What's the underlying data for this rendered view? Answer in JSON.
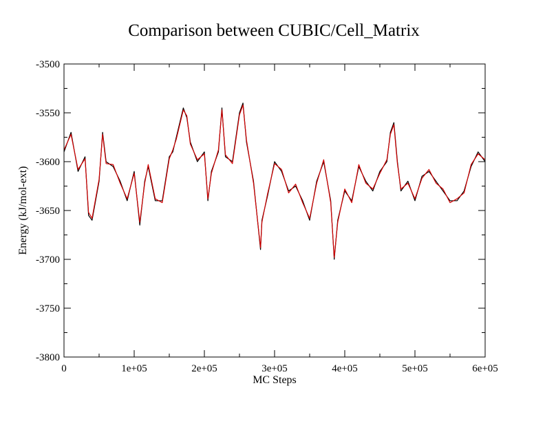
{
  "chart_data": {
    "type": "line",
    "title": "Comparison between CUBIC/Cell_Matrix",
    "xlabel": "MC Steps",
    "ylabel": "Energy (kJ/mol-ext)",
    "xlim": [
      0,
      600000
    ],
    "ylim": [
      -3800,
      -3500
    ],
    "x_ticks": [
      {
        "value": 0,
        "label": "0"
      },
      {
        "value": 100000,
        "label": "1e+05"
      },
      {
        "value": 200000,
        "label": "2e+05"
      },
      {
        "value": 300000,
        "label": "3e+05"
      },
      {
        "value": 400000,
        "label": "4e+05"
      },
      {
        "value": 500000,
        "label": "5e+05"
      },
      {
        "value": 600000,
        "label": "6e+05"
      }
    ],
    "x_minor_step": 50000,
    "y_ticks": [
      {
        "value": -3800,
        "label": "-3800"
      },
      {
        "value": -3750,
        "label": "-3750"
      },
      {
        "value": -3700,
        "label": "-3700"
      },
      {
        "value": -3650,
        "label": "-3650"
      },
      {
        "value": -3600,
        "label": "-3600"
      },
      {
        "value": -3550,
        "label": "-3550"
      },
      {
        "value": -3500,
        "label": "-3500"
      }
    ],
    "y_minor_step": 25,
    "grid": false,
    "legend": "none",
    "x": [
      0,
      10000,
      20000,
      30000,
      35000,
      40000,
      50000,
      55000,
      60000,
      70000,
      80000,
      90000,
      100000,
      108000,
      115000,
      120000,
      130000,
      140000,
      150000,
      155000,
      160000,
      170000,
      175000,
      180000,
      190000,
      200000,
      205000,
      210000,
      220000,
      225000,
      230000,
      240000,
      250000,
      255000,
      260000,
      270000,
      280000,
      282000,
      290000,
      300000,
      310000,
      320000,
      330000,
      340000,
      350000,
      360000,
      370000,
      380000,
      385000,
      390000,
      400000,
      410000,
      420000,
      430000,
      440000,
      450000,
      460000,
      465000,
      470000,
      475000,
      480000,
      490000,
      500000,
      510000,
      520000,
      530000,
      540000,
      550000,
      560000,
      570000,
      580000,
      590000,
      600000
    ],
    "series": [
      {
        "color": "#000000",
        "values": [
          -3590,
          -3570,
          -3610,
          -3595,
          -3655,
          -3660,
          -3620,
          -3570,
          -3600,
          -3605,
          -3620,
          -3640,
          -3610,
          -3665,
          -3620,
          -3605,
          -3640,
          -3640,
          -3595,
          -3590,
          -3575,
          -3545,
          -3555,
          -3580,
          -3600,
          -3590,
          -3640,
          -3610,
          -3590,
          -3545,
          -3595,
          -3600,
          -3550,
          -3540,
          -3580,
          -3620,
          -3690,
          -3660,
          -3635,
          -3600,
          -3610,
          -3630,
          -3625,
          -3640,
          -3660,
          -3620,
          -3600,
          -3640,
          -3700,
          -3660,
          -3630,
          -3640,
          -3605,
          -3620,
          -3630,
          -3610,
          -3600,
          -3570,
          -3560,
          -3600,
          -3630,
          -3620,
          -3640,
          -3615,
          -3610,
          -3620,
          -3630,
          -3640,
          -3640,
          -3630,
          -3605,
          -3590,
          -3600
        ]
      },
      {
        "color": "#d40000",
        "values": [
          -3588,
          -3572,
          -3608,
          -3597,
          -3652,
          -3658,
          -3618,
          -3572,
          -3602,
          -3603,
          -3622,
          -3638,
          -3612,
          -3662,
          -3622,
          -3603,
          -3638,
          -3642,
          -3597,
          -3588,
          -3577,
          -3547,
          -3553,
          -3582,
          -3598,
          -3592,
          -3638,
          -3612,
          -3588,
          -3547,
          -3593,
          -3602,
          -3552,
          -3542,
          -3578,
          -3622,
          -3688,
          -3662,
          -3633,
          -3602,
          -3608,
          -3632,
          -3623,
          -3642,
          -3658,
          -3622,
          -3598,
          -3642,
          -3698,
          -3662,
          -3628,
          -3642,
          -3603,
          -3622,
          -3628,
          -3612,
          -3598,
          -3572,
          -3562,
          -3602,
          -3628,
          -3622,
          -3638,
          -3617,
          -3608,
          -3622,
          -3628,
          -3642,
          -3638,
          -3632,
          -3603,
          -3592,
          -3598
        ]
      }
    ]
  }
}
